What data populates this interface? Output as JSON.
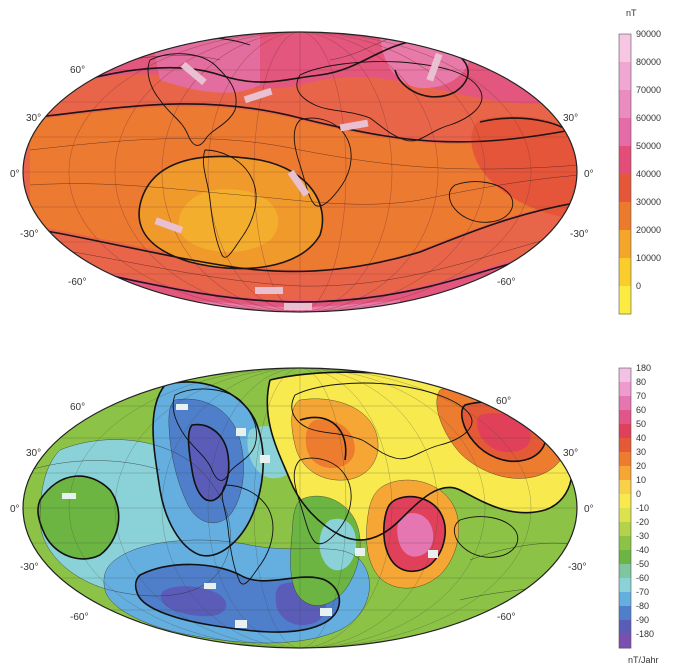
{
  "maps": [
    {
      "name": "total-intensity-map",
      "unit": "nT",
      "lat_labels_left": [
        "60°",
        "30°",
        "0°",
        "-30°",
        "-60°"
      ],
      "lat_labels_right": [
        "30°",
        "0°",
        "-30°",
        "-60°"
      ],
      "colorbar": {
        "stops": [
          {
            "label": "90000",
            "color": "#f6c6e2"
          },
          {
            "label": "80000",
            "color": "#f0a8d2"
          },
          {
            "label": "70000",
            "color": "#ea8cc0"
          },
          {
            "label": "60000",
            "color": "#e66ca8"
          },
          {
            "label": "50000",
            "color": "#e34d77"
          },
          {
            "label": "40000",
            "color": "#e6573a"
          },
          {
            "label": "30000",
            "color": "#ec7a2c"
          },
          {
            "label": "20000",
            "color": "#f4a52a"
          },
          {
            "label": "10000",
            "color": "#f9cd2c"
          },
          {
            "label": "0",
            "color": "#fcec42"
          }
        ]
      }
    },
    {
      "name": "secular-variation-map",
      "unit": "nT/Jahr",
      "lat_labels_left": [
        "60°",
        "30°",
        "0°",
        "-30°",
        "-60°"
      ],
      "lat_labels_right": [
        "60°",
        "30°",
        "0°",
        "-30°",
        "-60°"
      ],
      "colorbar": {
        "stops": [
          {
            "label": "180",
            "color": "#f3c1e3"
          },
          {
            "label": "80",
            "color": "#ee9bd0"
          },
          {
            "label": "70",
            "color": "#e676b2"
          },
          {
            "label": "60",
            "color": "#e2558a"
          },
          {
            "label": "50",
            "color": "#e0405a"
          },
          {
            "label": "40",
            "color": "#e45a36"
          },
          {
            "label": "30",
            "color": "#ed7c2e"
          },
          {
            "label": "20",
            "color": "#f5a635"
          },
          {
            "label": "10",
            "color": "#f8d04a"
          },
          {
            "label": "0",
            "color": "#f7e94e"
          },
          {
            "label": "-10",
            "color": "#dbe24e"
          },
          {
            "label": "-20",
            "color": "#b4d24a"
          },
          {
            "label": "-30",
            "color": "#8cc245"
          },
          {
            "label": "-40",
            "color": "#6cb543"
          },
          {
            "label": "-50",
            "color": "#7fc6a0"
          },
          {
            "label": "-60",
            "color": "#8ad2d8"
          },
          {
            "label": "-70",
            "color": "#64aee0"
          },
          {
            "label": "-80",
            "color": "#4f7ecb"
          },
          {
            "label": "-90",
            "color": "#5a5cb8"
          },
          {
            "label": "-180",
            "color": "#7a4fb0"
          }
        ]
      }
    }
  ]
}
